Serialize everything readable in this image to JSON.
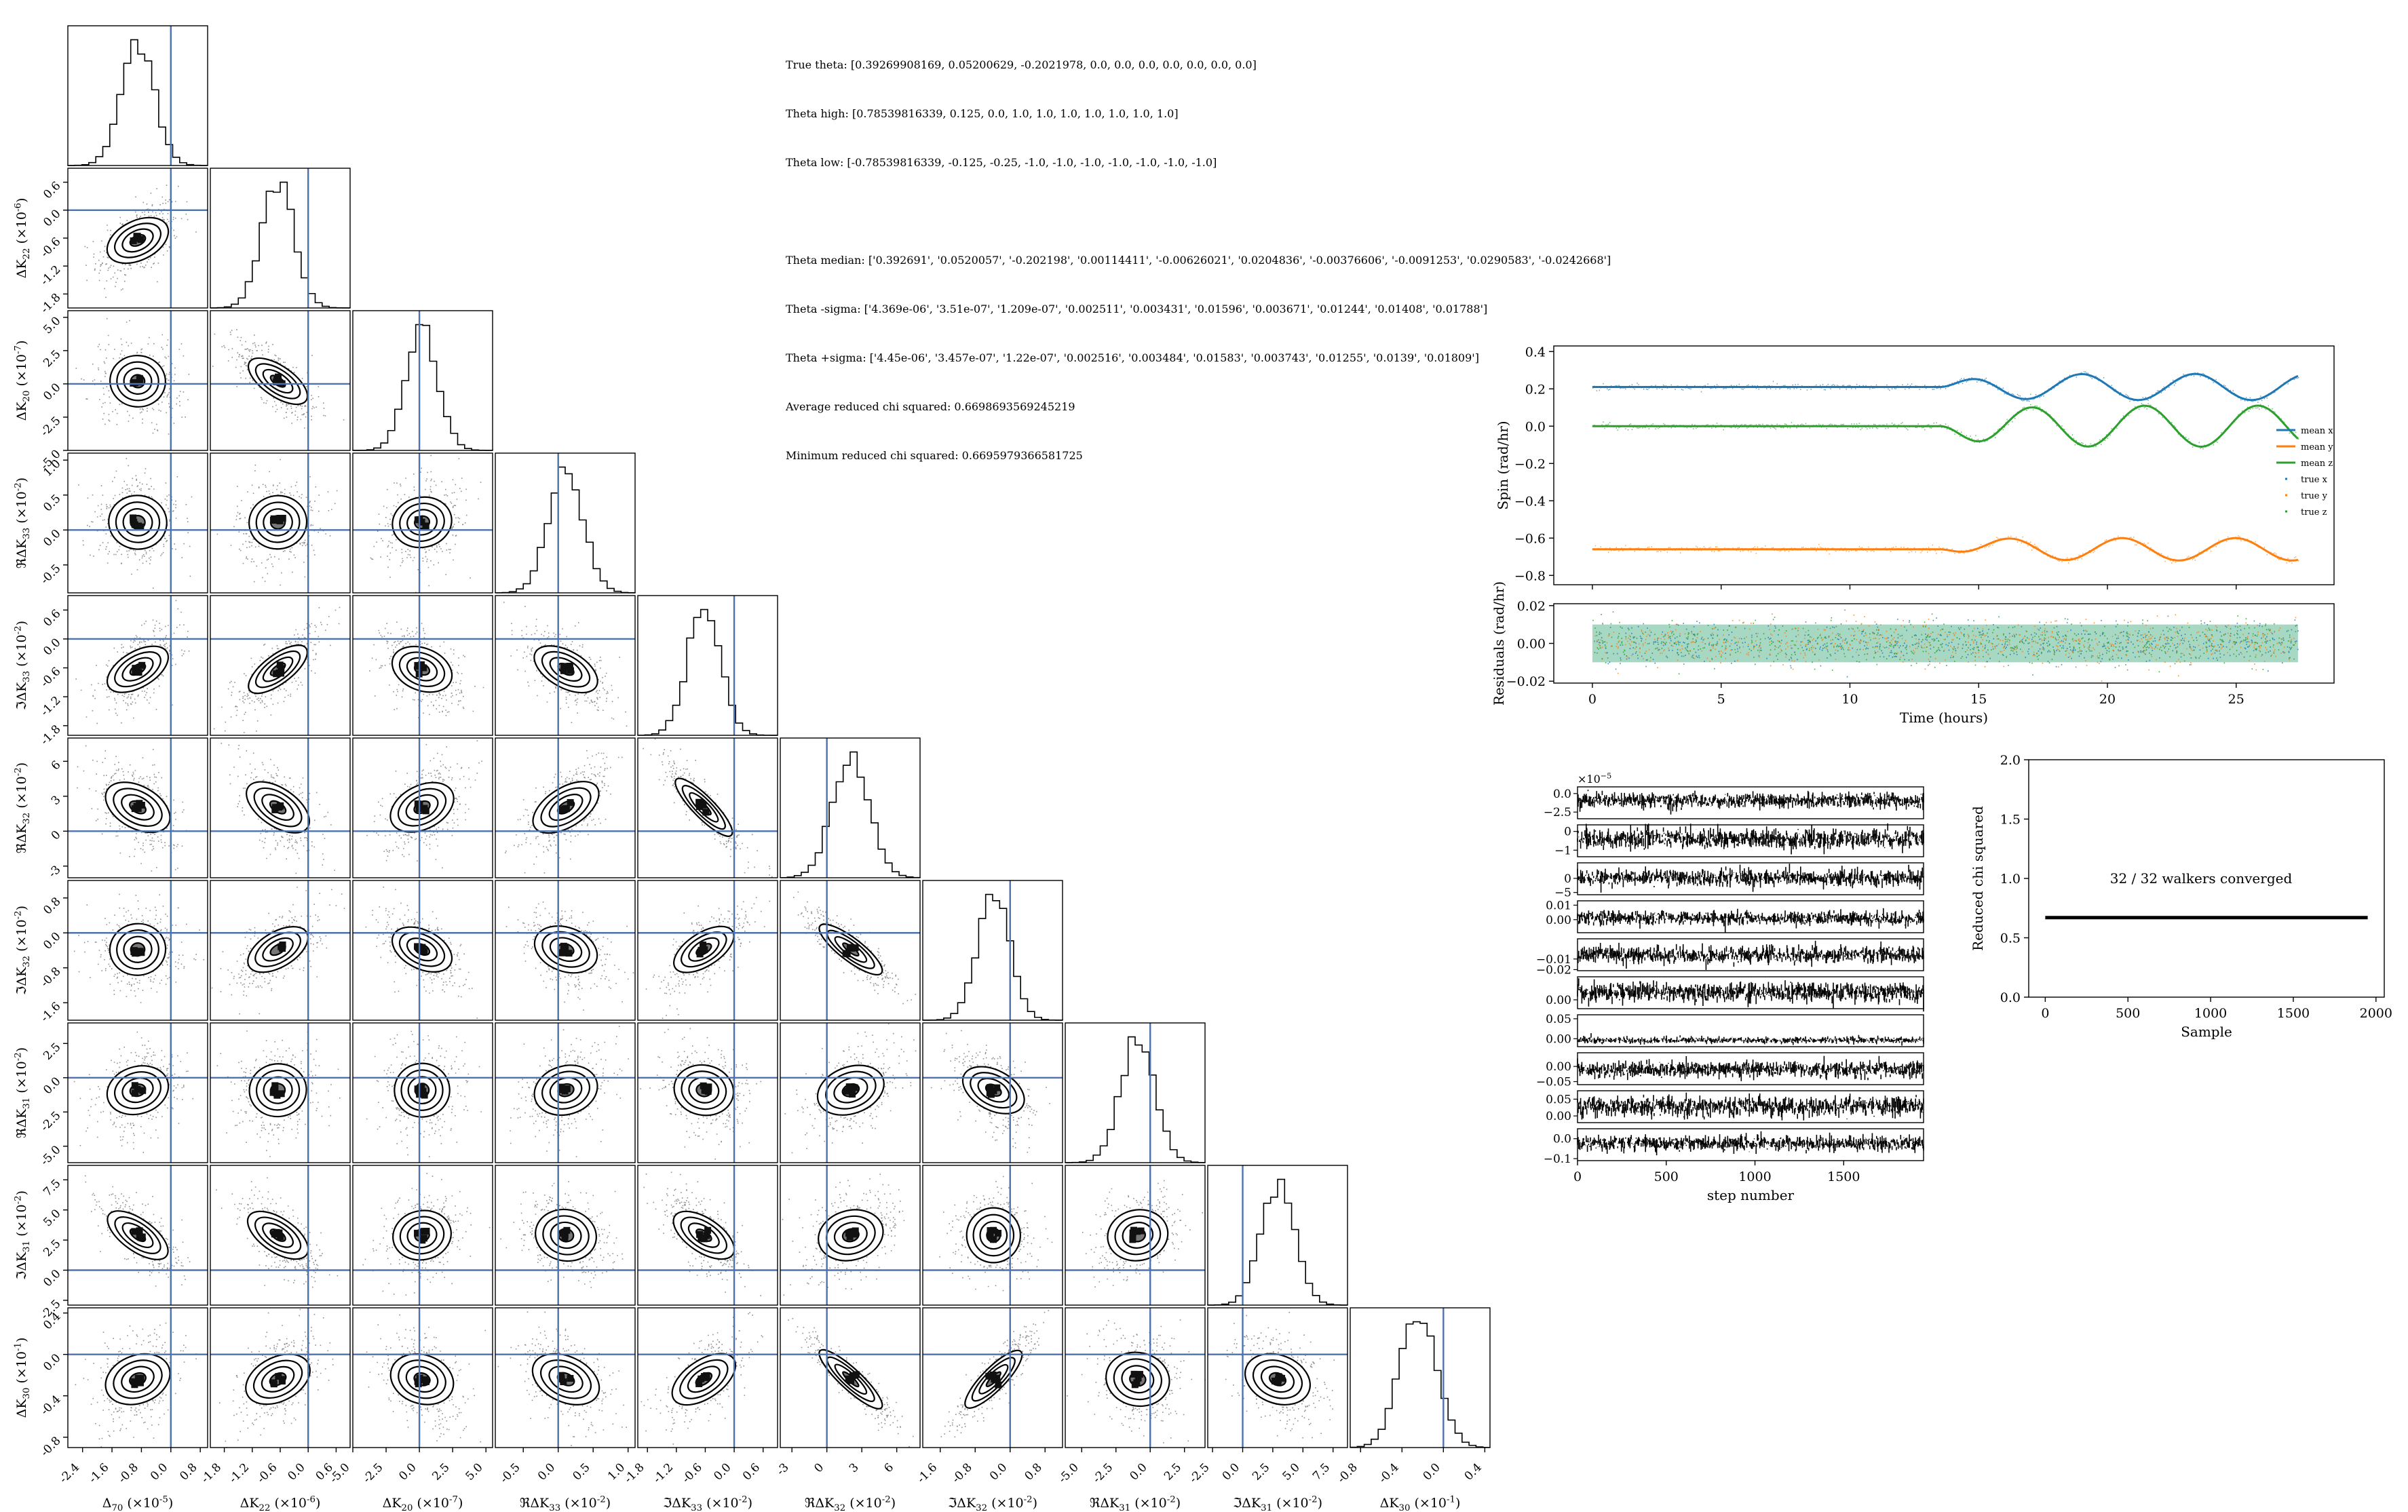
{
  "stats": {
    "true_theta": "True theta: [0.39269908169, 0.05200629, -0.2021978, 0.0, 0.0, 0.0, 0.0, 0.0, 0.0, 0.0]",
    "theta_high": "Theta high: [0.78539816339, 0.125, 0.0, 1.0, 1.0, 1.0, 1.0, 1.0, 1.0, 1.0]",
    "theta_low": "Theta low: [-0.78539816339, -0.125, -0.25, -1.0, -1.0, -1.0, -1.0, -1.0, -1.0, -1.0]",
    "theta_median": "Theta median: ['0.392691', '0.0520057', '-0.202198', '0.00114411', '-0.00626021', '0.0204836', '-0.00376606', '-0.0091253', '0.0290583', '-0.0242668']",
    "theta_minus_sigma": "Theta -sigma: ['4.369e-06', '3.51e-07', '1.209e-07', '0.002511', '0.003431', '0.01596', '0.003671', '0.01244', '0.01408', '0.01788']",
    "theta_plus_sigma": "Theta +sigma: ['4.45e-06', '3.457e-07', '1.22e-07', '0.002516', '0.003484', '0.01583', '0.003743', '0.01255', '0.0139', '0.01809']",
    "avg_chi": "Average reduced chi squared: 0.6698693569245219",
    "min_chi": "Minimum reduced chi squared: 0.6695979366581725"
  },
  "chart_data": [
    {
      "type": "scatter",
      "name": "corner-plot",
      "parameters": [
        {
          "label": "Δ_{70} (×10^{-5})",
          "ticks": [
            "-2.4",
            "-1.6",
            "-0.8",
            "0.0",
            "0.8"
          ],
          "tick_values": [
            -2.4,
            -1.6,
            -0.8,
            0.0,
            0.8
          ],
          "range": [
            -2.8,
            1.0
          ],
          "median": -0.9,
          "sigma": 0.45,
          "truth": 0.0
        },
        {
          "label": "ΔK_{22} (×10^{-6})",
          "ticks": [
            "-1.8",
            "-1.2",
            "-0.6",
            "0.0",
            "0.6"
          ],
          "tick_values": [
            -1.8,
            -1.2,
            -0.6,
            0.0,
            0.6
          ],
          "range": [
            -2.1,
            0.9
          ],
          "median": -0.65,
          "sigma": 0.35,
          "truth": 0.0
        },
        {
          "label": "ΔK_{20} (×10^{-7})",
          "ticks": [
            "-5.0",
            "-2.5",
            "0.0",
            "2.5",
            "5.0"
          ],
          "tick_values": [
            -5.0,
            -2.5,
            0.0,
            2.5,
            5.0
          ],
          "range": [
            -5.0,
            5.5
          ],
          "median": 0.2,
          "sigma": 1.2,
          "truth": 0.0
        },
        {
          "label": "ℜΔK_{33} (×10^{-2})",
          "ticks": [
            "-0.5",
            "0.0",
            "0.5",
            "1.0"
          ],
          "tick_values": [
            -0.5,
            0.0,
            0.5,
            1.0
          ],
          "range": [
            -0.9,
            1.1
          ],
          "median": 0.11,
          "sigma": 0.25,
          "truth": 0.0
        },
        {
          "label": "ℑΔK_{33} (×10^{-2})",
          "ticks": [
            "-1.8",
            "-1.2",
            "-0.6",
            "0.0",
            "0.6"
          ],
          "tick_values": [
            -1.8,
            -1.2,
            -0.6,
            0.0,
            0.6
          ],
          "range": [
            -2.0,
            0.9
          ],
          "median": -0.63,
          "sigma": 0.34,
          "truth": 0.0
        },
        {
          "label": "ℜΔK_{32} (×10^{-2})",
          "ticks": [
            "-3",
            "0",
            "3",
            "6"
          ],
          "tick_values": [
            -3,
            0,
            3,
            6
          ],
          "range": [
            -4.0,
            8.0
          ],
          "median": 2.05,
          "sigma": 1.59,
          "truth": 0.0
        },
        {
          "label": "ℑΔK_{32} (×10^{-2})",
          "ticks": [
            "-1.6",
            "-0.8",
            "0.0",
            "0.8"
          ],
          "tick_values": [
            -1.6,
            -0.8,
            0.0,
            0.8
          ],
          "range": [
            -2.0,
            1.2
          ],
          "median": -0.38,
          "sigma": 0.37,
          "truth": 0.0
        },
        {
          "label": "ℜΔK_{31} (×10^{-2})",
          "ticks": [
            "-5.0",
            "-2.5",
            "0.0",
            "2.5"
          ],
          "tick_values": [
            -5.0,
            -2.5,
            0.0,
            2.5
          ],
          "range": [
            -6.2,
            4.0
          ],
          "median": -0.91,
          "sigma": 1.25,
          "truth": 0.0
        },
        {
          "label": "ℑΔK_{31} (×10^{-2})",
          "ticks": [
            "-2.5",
            "0.0",
            "2.5",
            "5.0",
            "7.5"
          ],
          "tick_values": [
            -2.5,
            0.0,
            2.5,
            5.0,
            7.5
          ],
          "range": [
            -2.9,
            8.7
          ],
          "median": 2.9,
          "sigma": 1.4,
          "truth": 0.0
        },
        {
          "label": "ΔK_{30} (×10^{-1})",
          "ticks": [
            "-0.8",
            "-0.4",
            "0.0",
            "0.4"
          ],
          "tick_values": [
            -0.8,
            -0.4,
            0.0,
            0.4
          ],
          "range": [
            -0.9,
            0.45
          ],
          "median": -0.24,
          "sigma": 0.18,
          "truth": 0.0
        }
      ],
      "correlations": [
        [
          1,
          0.5,
          -0.1,
          -0.1,
          0.6,
          -0.5,
          0.1,
          0.3,
          -0.7,
          0.35
        ],
        [
          0.5,
          1,
          -0.7,
          0.1,
          0.75,
          -0.6,
          0.6,
          0.1,
          -0.65,
          0.45
        ],
        [
          -0.1,
          -0.7,
          1,
          0.2,
          -0.4,
          0.45,
          -0.5,
          0.05,
          0.2,
          -0.3
        ],
        [
          -0.1,
          0.1,
          0.2,
          1,
          -0.6,
          0.6,
          -0.4,
          0.3,
          -0.2,
          -0.45
        ],
        [
          0.6,
          0.75,
          -0.4,
          -0.6,
          1,
          -0.9,
          0.65,
          -0.2,
          -0.65,
          0.6
        ],
        [
          -0.5,
          -0.6,
          0.45,
          0.6,
          -0.9,
          1,
          -0.88,
          0.4,
          0.3,
          -0.92
        ],
        [
          0.1,
          0.6,
          -0.5,
          -0.4,
          0.65,
          -0.88,
          1,
          -0.5,
          0.0,
          0.88
        ],
        [
          0.3,
          0.1,
          0.05,
          0.3,
          -0.2,
          0.4,
          -0.5,
          1,
          0.2,
          -0.2
        ],
        [
          -0.7,
          -0.65,
          0.2,
          -0.2,
          -0.65,
          0.3,
          0.0,
          0.2,
          1,
          -0.35
        ],
        [
          0.35,
          0.45,
          -0.3,
          -0.45,
          0.6,
          -0.92,
          0.88,
          -0.2,
          -0.35,
          1
        ]
      ],
      "histogram_bins": 20,
      "contour_levels_sigma": [
        0.5,
        1.0,
        1.5,
        2.0
      ],
      "truth_line_color": "#4c72b0",
      "point_color": "#000000"
    },
    {
      "type": "line",
      "name": "spin-plot",
      "xlabel": "Time (hours)",
      "ylabel": "Spin (rad/hr)",
      "xlim": [
        -1.5,
        28.8
      ],
      "ylim": [
        -0.85,
        0.43
      ],
      "xticks": [
        0,
        5,
        10,
        15,
        20,
        25
      ],
      "yticks": [
        -0.8,
        -0.6,
        -0.4,
        -0.2,
        0.0,
        0.2,
        0.4
      ],
      "ytick_labels": [
        "−0.8",
        "−0.6",
        "−0.4",
        "−0.2",
        "0.0",
        "0.2",
        "0.4"
      ],
      "tmax": 27.4,
      "onset": 13.5,
      "series": [
        {
          "name": "mean x",
          "base": 0.21,
          "amp": 0.07,
          "period": 4.4,
          "phase": 0.0,
          "sign": 1,
          "color": "#1f77b4"
        },
        {
          "name": "mean y",
          "base": -0.66,
          "amp": -0.06,
          "period": 4.4,
          "phase": 0.9,
          "sign": 1,
          "color": "#ff7f0e"
        },
        {
          "name": "mean z",
          "base": 0.0,
          "amp": 0.11,
          "period": 4.4,
          "phase": 2.8,
          "sign": 1,
          "color": "#2ca02c"
        }
      ],
      "legend": [
        "mean x",
        "mean y",
        "mean z",
        "true x",
        "true y",
        "true z"
      ],
      "legend_colors": [
        "#1f77b4",
        "#ff7f0e",
        "#2ca02c",
        "#1f77b4",
        "#ff7f0e",
        "#2ca02c"
      ],
      "legend_placement": "right"
    },
    {
      "type": "scatter",
      "name": "residuals-plot",
      "ylabel": "Residuals (rad/hr)",
      "xlabel": "Time (hours)",
      "xlim": [
        -1.5,
        28.8
      ],
      "ylim": [
        -0.021,
        0.021
      ],
      "yticks": [
        -0.02,
        0.0,
        0.02
      ],
      "ytick_labels": [
        "−0.02",
        "0.00",
        "0.02"
      ],
      "xticks": [
        0,
        5,
        10,
        15,
        20,
        25
      ],
      "band": 0.01,
      "band_color": "#3aa97a"
    },
    {
      "type": "line",
      "name": "walker-traces",
      "xlabel": "step number",
      "xlim": [
        0,
        1950
      ],
      "xticks": [
        0,
        500,
        1000,
        1500
      ],
      "exponent_label": "×10^{−5}",
      "panels": [
        {
          "ytick_labels": [
            "0.0",
            "−2.5"
          ],
          "ytick_values": [
            0.0,
            -2.5
          ],
          "ylim": [
            -3.4,
            0.9
          ],
          "center": -0.9,
          "spread": 0.9
        },
        {
          "ytick_labels": [
            "0",
            "−1"
          ],
          "ytick_values": [
            0,
            -1
          ],
          "ylim": [
            -1.35,
            0.35
          ],
          "center": -0.4,
          "spread": 0.5
        },
        {
          "ytick_labels": [
            "0",
            "−5"
          ],
          "ytick_values": [
            0,
            -5
          ],
          "ylim": [
            -5.8,
            5.5
          ],
          "center": 0.2,
          "spread": 2.6
        },
        {
          "ytick_labels": [
            "0.01",
            "0.00"
          ],
          "ytick_values": [
            0.01,
            0.0
          ],
          "ylim": [
            -0.009,
            0.013
          ],
          "center": 0.0011,
          "spread": 0.0045
        },
        {
          "ytick_labels": [
            "−0.01",
            "−0.02"
          ],
          "ytick_values": [
            -0.01,
            -0.02
          ],
          "ylim": [
            -0.021,
            0.009
          ],
          "center": -0.0063,
          "spread": 0.0068
        },
        {
          "ytick_labels": [
            "0.00"
          ],
          "ytick_values": [
            0.0
          ],
          "ylim": [
            -0.025,
            0.065
          ],
          "center": 0.0205,
          "spread": 0.025
        },
        {
          "ytick_labels": [
            "0.05",
            "0.00"
          ],
          "ytick_values": [
            0.05,
            0.0
          ],
          "ylim": [
            -0.02,
            0.06
          ],
          "center": -0.0038,
          "spread": 0.0074
        },
        {
          "ytick_labels": [
            "0.00",
            "−0.05"
          ],
          "ytick_values": [
            0.0,
            -0.05
          ],
          "ylim": [
            -0.06,
            0.045
          ],
          "center": -0.009,
          "spread": 0.025
        },
        {
          "ytick_labels": [
            "0.05",
            "0.00"
          ],
          "ytick_values": [
            0.05,
            0.0
          ],
          "ylim": [
            -0.02,
            0.075
          ],
          "center": 0.029,
          "spread": 0.028
        },
        {
          "ytick_labels": [
            "0.0",
            "−0.1"
          ],
          "ytick_values": [
            0.0,
            -0.1
          ],
          "ylim": [
            -0.11,
            0.05
          ],
          "center": -0.024,
          "spread": 0.035
        }
      ]
    },
    {
      "type": "line",
      "name": "reduced-chi-plot",
      "xlabel": "Sample",
      "ylabel": "Reduced chi squared",
      "xlim": [
        -100,
        2050
      ],
      "ylim": [
        0.0,
        2.0
      ],
      "xticks": [
        0,
        500,
        1000,
        1500,
        2000
      ],
      "yticks": [
        0.0,
        0.5,
        1.0,
        1.5,
        2.0
      ],
      "ytick_labels": [
        "0.0",
        "0.5",
        "1.0",
        "1.5",
        "2.0"
      ],
      "value": 0.67,
      "x_end": 1950,
      "annotation": "32 / 32 walkers converged"
    }
  ]
}
